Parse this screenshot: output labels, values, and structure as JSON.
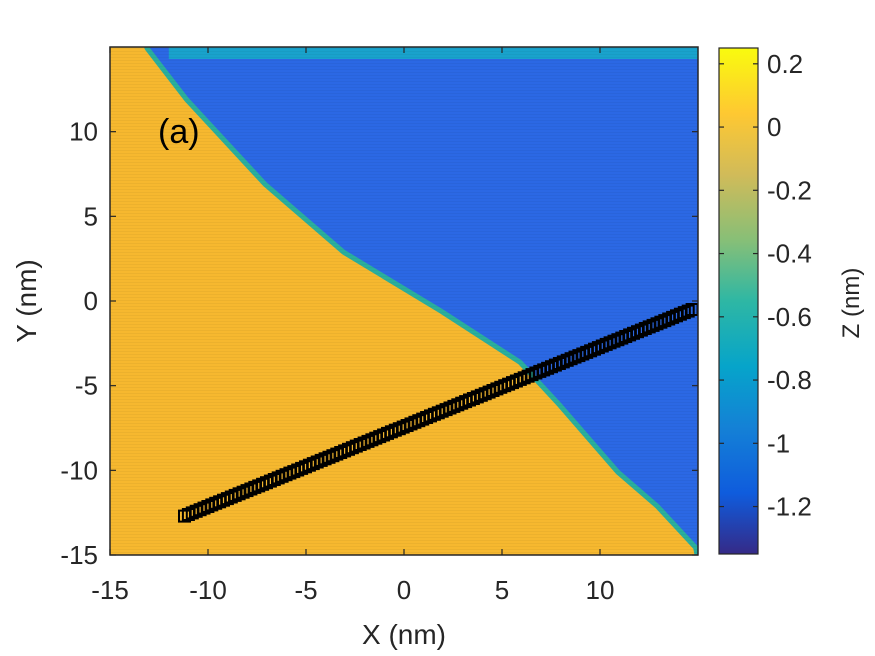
{
  "chart_data": {
    "type": "heatmap",
    "panel_label": "(a)",
    "xlabel": "X (nm)",
    "ylabel": "Y (nm)",
    "xlim": [
      -15,
      15
    ],
    "ylim": [
      -15,
      15
    ],
    "xticks": [
      -15,
      -10,
      -5,
      0,
      5,
      10
    ],
    "xtick_labels": [
      "-15",
      "-10",
      "-5",
      "0",
      "5",
      "10"
    ],
    "yticks": [
      -15,
      -10,
      -5,
      0,
      5,
      10
    ],
    "ytick_labels": [
      "-15",
      "-10",
      "-5",
      "0",
      "5",
      "10"
    ],
    "colorbar": {
      "label": "Z (nm)",
      "range": [
        -1.35,
        0.25
      ],
      "ticks": [
        0.2,
        0,
        -0.2,
        -0.4,
        -0.6,
        -0.8,
        -1,
        -1.2
      ],
      "tick_labels": [
        "0.2",
        "0",
        "-0.2",
        "-0.4",
        "-0.6",
        "-0.8",
        "-1",
        "-1.2"
      ],
      "colormap": "parula"
    },
    "step_edge": {
      "description": "boundary between upper terrace (Z ≈ 0.05 nm, orange) and lower terrace (Z ≈ -1.1 nm, blue)",
      "points": [
        [
          -13,
          15
        ],
        [
          -11,
          12
        ],
        [
          -7,
          7
        ],
        [
          -3,
          3
        ],
        [
          2,
          -0.5
        ],
        [
          6,
          -3.5
        ],
        [
          8,
          -6
        ],
        [
          11,
          -10
        ],
        [
          13,
          -12
        ],
        [
          15,
          -14.5
        ]
      ]
    },
    "upper_terrace_z": 0.05,
    "lower_terrace_z": -1.1,
    "line_profile": {
      "marker": "square",
      "color": "#000000",
      "start": [
        -11.2,
        -12.7
      ],
      "end": [
        14.7,
        -0.5
      ]
    }
  }
}
